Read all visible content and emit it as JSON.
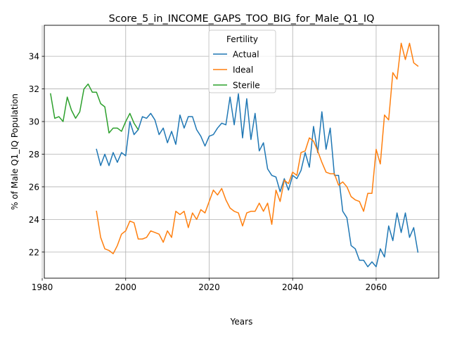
{
  "chart_data": {
    "type": "line",
    "title": "Score_5_in_INCOME_GAPS_TOO_BIG_for_Male_Q1_IQ",
    "xlabel": "Years",
    "ylabel": "% of Male Q1_IQ Population",
    "xlim": [
      1980.5,
      2075
    ],
    "ylim": [
      20.4,
      35.9
    ],
    "xticks": [
      1980,
      2000,
      2020,
      2040,
      2060
    ],
    "yticks": [
      22,
      24,
      26,
      28,
      30,
      32,
      34
    ],
    "grid": true,
    "legend": {
      "title": "Fertility",
      "placement": "top-center"
    },
    "series": [
      {
        "name": "Actual",
        "color": "#1f77b4",
        "x": [
          1993,
          1994,
          1995,
          1996,
          1997,
          1998,
          1999,
          2000,
          2001,
          2002,
          2003,
          2004,
          2005,
          2006,
          2007,
          2008,
          2009,
          2010,
          2011,
          2012,
          2013,
          2014,
          2015,
          2016,
          2017,
          2018,
          2019,
          2020,
          2021,
          2022,
          2023,
          2024,
          2025,
          2026,
          2027,
          2028,
          2029,
          2030,
          2031,
          2032,
          2033,
          2034,
          2035,
          2036,
          2037,
          2038,
          2039,
          2040,
          2041,
          2042,
          2043,
          2044,
          2045,
          2046,
          2047,
          2048,
          2049,
          2050,
          2051,
          2052,
          2053,
          2054,
          2055,
          2056,
          2057,
          2058,
          2059,
          2060,
          2061,
          2062,
          2063,
          2064,
          2065,
          2066,
          2067,
          2068,
          2069,
          2070
        ],
        "values": [
          28.3,
          27.3,
          28.0,
          27.3,
          28.1,
          27.5,
          28.1,
          27.9,
          30.0,
          29.2,
          29.5,
          30.3,
          30.2,
          30.5,
          30.1,
          29.2,
          29.6,
          28.7,
          29.4,
          28.6,
          30.4,
          29.6,
          30.3,
          30.3,
          29.5,
          29.1,
          28.5,
          29.1,
          29.2,
          29.6,
          29.9,
          29.8,
          31.5,
          29.8,
          31.7,
          29.0,
          31.4,
          28.9,
          30.5,
          28.2,
          28.7,
          27.1,
          26.7,
          26.6,
          25.7,
          26.5,
          25.8,
          26.7,
          26.5,
          27.0,
          28.1,
          27.2,
          29.7,
          28.1,
          30.6,
          28.3,
          29.6,
          26.7,
          26.7,
          24.5,
          24.1,
          22.4,
          22.2,
          21.5,
          21.5,
          21.1,
          21.4,
          21.1,
          22.2,
          21.7,
          23.6,
          22.7,
          24.4,
          23.2,
          24.4,
          22.9,
          23.5,
          22.0
        ]
      },
      {
        "name": "Ideal",
        "color": "#ff7f0e",
        "x": [
          1993,
          1994,
          1995,
          1996,
          1997,
          1998,
          1999,
          2000,
          2001,
          2002,
          2003,
          2004,
          2005,
          2006,
          2007,
          2008,
          2009,
          2010,
          2011,
          2012,
          2013,
          2014,
          2015,
          2016,
          2017,
          2018,
          2019,
          2020,
          2021,
          2022,
          2023,
          2024,
          2025,
          2026,
          2027,
          2028,
          2029,
          2030,
          2031,
          2032,
          2033,
          2034,
          2035,
          2036,
          2037,
          2038,
          2039,
          2040,
          2041,
          2042,
          2043,
          2044,
          2045,
          2046,
          2047,
          2048,
          2049,
          2050,
          2051,
          2052,
          2053,
          2054,
          2055,
          2056,
          2057,
          2058,
          2059,
          2060,
          2061,
          2062,
          2063,
          2064,
          2065,
          2066,
          2067,
          2068,
          2069,
          2070
        ],
        "values": [
          24.5,
          22.9,
          22.2,
          22.1,
          21.9,
          22.4,
          23.1,
          23.3,
          23.9,
          23.8,
          22.8,
          22.8,
          22.9,
          23.3,
          23.2,
          23.1,
          22.6,
          23.3,
          22.9,
          24.5,
          24.3,
          24.5,
          23.5,
          24.4,
          24.0,
          24.6,
          24.4,
          25.1,
          25.8,
          25.5,
          25.9,
          25.2,
          24.7,
          24.5,
          24.4,
          23.6,
          24.4,
          24.5,
          24.5,
          25.0,
          24.5,
          25.0,
          23.7,
          25.8,
          25.1,
          26.4,
          26.2,
          26.9,
          26.7,
          28.1,
          28.2,
          29.0,
          28.8,
          28.2,
          27.5,
          26.9,
          26.8,
          26.8,
          26.1,
          26.3,
          26.0,
          25.4,
          25.2,
          25.1,
          24.5,
          25.6,
          25.6,
          28.3,
          27.4,
          30.4,
          30.1,
          33.0,
          32.6,
          34.8,
          33.8,
          34.8,
          33.6,
          33.4
        ]
      },
      {
        "name": "Sterile",
        "color": "#2ca02c",
        "x": [
          1982,
          1983,
          1984,
          1985,
          1986,
          1987,
          1988,
          1989,
          1990,
          1991,
          1992,
          1993,
          1994,
          1995,
          1996,
          1997,
          1998,
          1999,
          2000,
          2001,
          2002,
          2003
        ],
        "values": [
          31.7,
          30.2,
          30.3,
          30.0,
          31.5,
          30.7,
          30.2,
          30.6,
          32.0,
          32.3,
          31.8,
          31.8,
          31.1,
          30.9,
          29.3,
          29.6,
          29.6,
          29.4,
          30.0,
          30.5,
          29.9,
          29.5
        ]
      }
    ]
  }
}
